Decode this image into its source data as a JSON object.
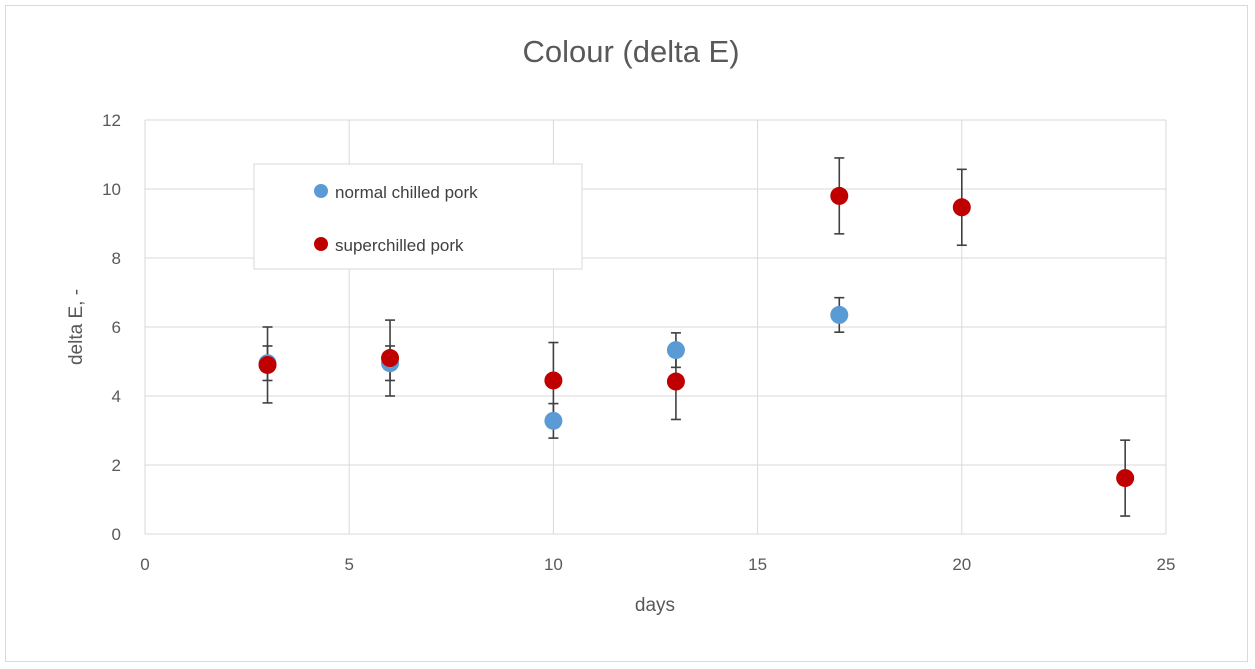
{
  "chart_data": {
    "type": "scatter",
    "title": "Colour (delta E)",
    "xlabel": "days",
    "ylabel": "delta E, -",
    "xlim": [
      0,
      25
    ],
    "ylim": [
      0,
      12
    ],
    "xticks": [
      "0",
      "5",
      "10",
      "15",
      "20",
      "25"
    ],
    "yticks": [
      "0",
      "2",
      "4",
      "6",
      "8",
      "10",
      "12"
    ],
    "grid": true,
    "legend_position": "top-left (inside plot)",
    "series": [
      {
        "name": "normal chilled pork",
        "color": "#5b9bd5",
        "points": [
          {
            "x": 3,
            "y": 4.95,
            "err": 0.5
          },
          {
            "x": 6,
            "y": 4.95,
            "err": 0.5
          },
          {
            "x": 10,
            "y": 3.28,
            "err": 0.5
          },
          {
            "x": 13,
            "y": 5.33,
            "err": 0.5
          },
          {
            "x": 17,
            "y": 6.35,
            "err": 0.5
          }
        ]
      },
      {
        "name": "superchilled pork",
        "color": "#c00000",
        "points": [
          {
            "x": 3,
            "y": 4.9,
            "err": 1.1
          },
          {
            "x": 6,
            "y": 5.1,
            "err": 1.1
          },
          {
            "x": 10,
            "y": 4.45,
            "err": 1.1
          },
          {
            "x": 13,
            "y": 4.42,
            "err": 1.1
          },
          {
            "x": 17,
            "y": 9.8,
            "err": 1.1
          },
          {
            "x": 20,
            "y": 9.47,
            "err": 1.1
          },
          {
            "x": 24,
            "y": 1.62,
            "err": 1.1
          }
        ]
      }
    ]
  }
}
